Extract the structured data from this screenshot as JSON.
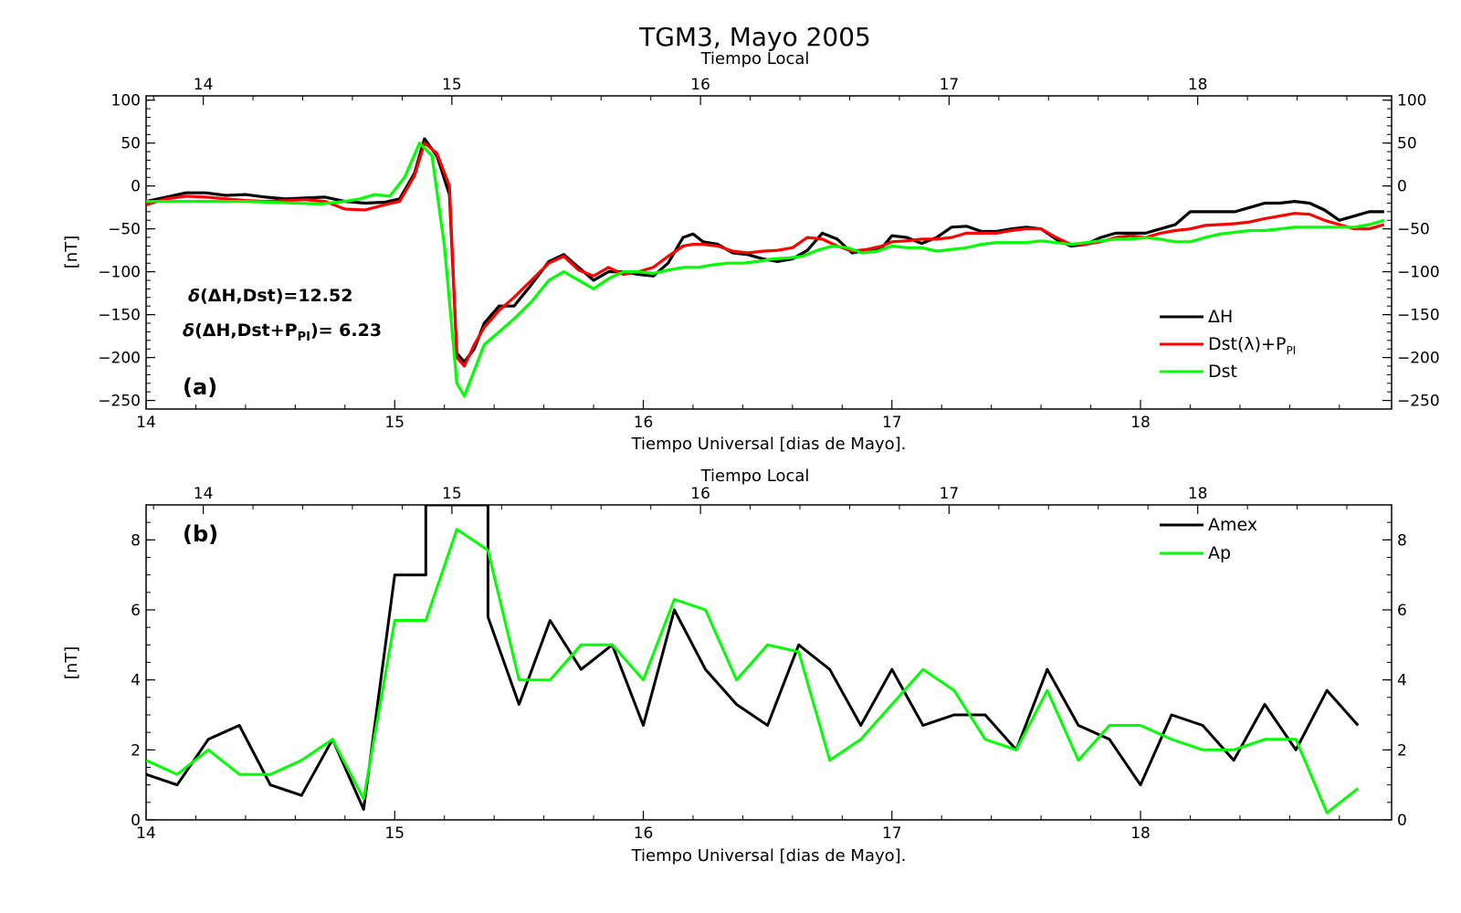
{
  "page": {
    "title": "TGM3, Mayo 2005",
    "top_axis_label": "Tiempo Local",
    "bottom_axis_label": "Tiempo Universal [dias de Mayo]."
  },
  "panel_a": {
    "label": "(a)",
    "ylabel": "[nT]",
    "annotation_1": {
      "prefix": "δ",
      "text": "(ΔH,Dst)=12.52"
    },
    "annotation_2": {
      "prefix": "δ",
      "pre": "(ΔH,Dst+P",
      "sub": "PI",
      "post": ")=  6.23"
    },
    "legend": [
      {
        "text": "ΔH",
        "color": "#000000"
      },
      {
        "text": "Dst(λ)+P",
        "sub": "PI",
        "color": "#ff0000"
      },
      {
        "text": "Dst",
        "color": "#00ff00"
      }
    ]
  },
  "panel_b": {
    "label": "(b)",
    "ylabel": "[nT]",
    "legend": [
      {
        "text": "Amex",
        "color": "#000000"
      },
      {
        "text": "Ap",
        "color": "#00ff00"
      }
    ]
  },
  "chart_data": [
    {
      "type": "line",
      "title": "TGM3, Mayo 2005",
      "xlabel": "Tiempo Universal [dias de Mayo].",
      "x2label": "Tiempo Local",
      "ylabel": "[nT]",
      "xlim": [
        14,
        19.01
      ],
      "ylim": [
        -260,
        105
      ],
      "xticks": [
        14,
        15,
        16,
        17,
        18
      ],
      "x2ticks": [
        14,
        15,
        16,
        17,
        18
      ],
      "x2lim": [
        13.77,
        18.78
      ],
      "yticks": [
        100,
        50,
        0,
        -50,
        -100,
        -150,
        -200,
        -250
      ],
      "series": [
        {
          "name": "ΔH",
          "color": "#000000",
          "width": 3.2,
          "x": [
            14.0,
            14.08,
            14.16,
            14.24,
            14.32,
            14.4,
            14.48,
            14.56,
            14.64,
            14.72,
            14.8,
            14.88,
            14.96,
            15.02,
            15.08,
            15.12,
            15.17,
            15.22,
            15.25,
            15.28,
            15.32,
            15.36,
            15.42,
            15.48,
            15.55,
            15.62,
            15.68,
            15.74,
            15.8,
            15.86,
            15.92,
            15.98,
            16.04,
            16.1,
            16.16,
            16.2,
            16.24,
            16.3,
            16.36,
            16.42,
            16.48,
            16.54,
            16.6,
            16.66,
            16.72,
            16.78,
            16.84,
            16.9,
            16.96,
            17.0,
            17.06,
            17.12,
            17.18,
            17.24,
            17.3,
            17.36,
            17.42,
            17.48,
            17.54,
            17.6,
            17.66,
            17.72,
            17.78,
            17.84,
            17.9,
            17.96,
            18.02,
            18.08,
            18.14,
            18.2,
            18.26,
            18.32,
            18.38,
            18.44,
            18.5,
            18.56,
            18.62,
            18.68,
            18.74,
            18.8,
            18.86,
            18.92,
            18.98
          ],
          "y": [
            -18,
            -13,
            -8,
            -8,
            -11,
            -10,
            -13,
            -15,
            -14,
            -13,
            -18,
            -20,
            -19,
            -15,
            15,
            55,
            35,
            -10,
            -195,
            -205,
            -190,
            -160,
            -140,
            -140,
            -115,
            -88,
            -80,
            -95,
            -110,
            -100,
            -100,
            -103,
            -105,
            -90,
            -60,
            -56,
            -65,
            -68,
            -78,
            -80,
            -85,
            -88,
            -85,
            -75,
            -55,
            -62,
            -78,
            -75,
            -72,
            -58,
            -60,
            -67,
            -60,
            -48,
            -47,
            -53,
            -53,
            -50,
            -48,
            -50,
            -62,
            -70,
            -68,
            -60,
            -55,
            -55,
            -55,
            -50,
            -45,
            -30,
            -30,
            -30,
            -30,
            -25,
            -20,
            -20,
            -18,
            -20,
            -28,
            -40,
            -35,
            -30,
            -30
          ]
        },
        {
          "name": "Dst(λ)+PPI",
          "color": "#ff0000",
          "width": 3.2,
          "x": [
            14.0,
            14.08,
            14.16,
            14.24,
            14.32,
            14.4,
            14.48,
            14.56,
            14.64,
            14.72,
            14.8,
            14.88,
            14.96,
            15.02,
            15.08,
            15.12,
            15.17,
            15.22,
            15.25,
            15.28,
            15.32,
            15.36,
            15.42,
            15.48,
            15.55,
            15.62,
            15.68,
            15.74,
            15.8,
            15.86,
            15.92,
            15.98,
            16.04,
            16.1,
            16.16,
            16.2,
            16.24,
            16.3,
            16.36,
            16.42,
            16.48,
            16.54,
            16.6,
            16.66,
            16.72,
            16.78,
            16.84,
            16.9,
            16.96,
            17.0,
            17.06,
            17.12,
            17.18,
            17.24,
            17.3,
            17.36,
            17.42,
            17.48,
            17.54,
            17.6,
            17.66,
            17.72,
            17.78,
            17.84,
            17.9,
            17.96,
            18.02,
            18.08,
            18.14,
            18.2,
            18.26,
            18.32,
            18.38,
            18.44,
            18.5,
            18.56,
            18.62,
            18.68,
            18.74,
            18.8,
            18.86,
            18.92,
            18.98
          ],
          "y": [
            -22,
            -15,
            -12,
            -13,
            -15,
            -17,
            -18,
            -17,
            -16,
            -18,
            -27,
            -28,
            -22,
            -18,
            12,
            50,
            38,
            0,
            -200,
            -210,
            -185,
            -165,
            -145,
            -130,
            -110,
            -90,
            -82,
            -98,
            -105,
            -95,
            -103,
            -100,
            -95,
            -82,
            -70,
            -68,
            -68,
            -70,
            -76,
            -78,
            -76,
            -75,
            -72,
            -60,
            -62,
            -70,
            -76,
            -74,
            -70,
            -65,
            -64,
            -62,
            -62,
            -60,
            -55,
            -55,
            -55,
            -52,
            -50,
            -50,
            -60,
            -68,
            -68,
            -65,
            -60,
            -58,
            -60,
            -55,
            -52,
            -50,
            -46,
            -45,
            -44,
            -42,
            -38,
            -35,
            -32,
            -33,
            -40,
            -45,
            -50,
            -50,
            -45
          ]
        },
        {
          "name": "Dst",
          "color": "#00ff00",
          "width": 3.2,
          "x": [
            14.0,
            14.1,
            14.2,
            14.3,
            14.4,
            14.5,
            14.6,
            14.7,
            14.8,
            14.86,
            14.92,
            14.98,
            15.04,
            15.1,
            15.15,
            15.2,
            15.25,
            15.28,
            15.32,
            15.36,
            15.42,
            15.48,
            15.55,
            15.62,
            15.68,
            15.74,
            15.8,
            15.86,
            15.92,
            15.98,
            16.04,
            16.1,
            16.16,
            16.22,
            16.28,
            16.34,
            16.4,
            16.46,
            16.52,
            16.58,
            16.64,
            16.7,
            16.76,
            16.82,
            16.88,
            16.94,
            17.0,
            17.06,
            17.12,
            17.18,
            17.24,
            17.3,
            17.36,
            17.42,
            17.48,
            17.54,
            17.6,
            17.66,
            17.72,
            17.78,
            17.84,
            17.9,
            17.96,
            18.02,
            18.08,
            18.14,
            18.2,
            18.26,
            18.32,
            18.38,
            18.44,
            18.5,
            18.56,
            18.62,
            18.68,
            18.74,
            18.8,
            18.86,
            18.92,
            18.98
          ],
          "y": [
            -18,
            -18,
            -18,
            -18,
            -18,
            -19,
            -20,
            -21,
            -18,
            -15,
            -10,
            -12,
            10,
            50,
            35,
            -70,
            -230,
            -245,
            -215,
            -185,
            -170,
            -155,
            -135,
            -110,
            -100,
            -110,
            -120,
            -108,
            -100,
            -100,
            -102,
            -98,
            -95,
            -95,
            -92,
            -90,
            -90,
            -88,
            -85,
            -84,
            -82,
            -75,
            -70,
            -72,
            -78,
            -76,
            -70,
            -72,
            -72,
            -76,
            -74,
            -72,
            -68,
            -66,
            -66,
            -66,
            -64,
            -66,
            -68,
            -66,
            -64,
            -62,
            -62,
            -60,
            -62,
            -65,
            -65,
            -60,
            -56,
            -54,
            -52,
            -52,
            -50,
            -48,
            -48,
            -48,
            -48,
            -48,
            -45,
            -40
          ]
        }
      ]
    },
    {
      "type": "line",
      "xlabel": "Tiempo Universal [dias de Mayo].",
      "x2label": "Tiempo Local",
      "ylabel": "[nT]",
      "xlim": [
        14,
        19.01
      ],
      "ylim": [
        0,
        9
      ],
      "xticks": [
        14,
        15,
        16,
        17,
        18
      ],
      "x2ticks": [
        14,
        15,
        16,
        17,
        18
      ],
      "x2lim": [
        13.77,
        18.78
      ],
      "yticks": [
        0,
        2,
        4,
        6,
        8
      ],
      "series": [
        {
          "name": "Amex",
          "color": "#000000",
          "width": 3,
          "x": [
            14.0,
            14.125,
            14.25,
            14.375,
            14.5,
            14.625,
            14.75,
            14.875,
            15.0,
            15.125,
            15.125,
            15.375,
            15.375,
            15.5,
            15.625,
            15.75,
            15.875,
            16.0,
            16.125,
            16.25,
            16.375,
            16.5,
            16.625,
            16.75,
            16.875,
            17.0,
            17.125,
            17.25,
            17.375,
            17.5,
            17.625,
            17.75,
            17.875,
            18.0,
            18.125,
            18.25,
            18.375,
            18.5,
            18.625,
            18.75,
            18.875
          ],
          "y": [
            1.3,
            1.0,
            2.3,
            2.7,
            1.0,
            0.7,
            2.3,
            0.3,
            7.0,
            7.0,
            9.0,
            9.0,
            5.8,
            3.3,
            5.7,
            4.3,
            5.0,
            2.7,
            6.0,
            4.3,
            3.3,
            2.7,
            5.0,
            4.3,
            2.7,
            4.3,
            2.7,
            3.0,
            3.0,
            2.0,
            4.3,
            2.7,
            2.3,
            1.0,
            3.0,
            2.7,
            1.7,
            3.3,
            2.0,
            3.7,
            2.7
          ]
        },
        {
          "name": "Ap",
          "color": "#00ff00",
          "width": 3,
          "x": [
            14.0,
            14.125,
            14.25,
            14.375,
            14.5,
            14.625,
            14.75,
            14.875,
            15.0,
            15.125,
            15.25,
            15.375,
            15.5,
            15.625,
            15.75,
            15.875,
            16.0,
            16.125,
            16.25,
            16.375,
            16.5,
            16.625,
            16.75,
            16.875,
            17.0,
            17.125,
            17.25,
            17.375,
            17.5,
            17.625,
            17.75,
            17.875,
            18.0,
            18.125,
            18.25,
            18.375,
            18.5,
            18.625,
            18.75,
            18.875
          ],
          "y": [
            1.7,
            1.3,
            2.0,
            1.3,
            1.3,
            1.7,
            2.3,
            0.6,
            5.7,
            5.7,
            8.3,
            7.7,
            4.0,
            4.0,
            5.0,
            5.0,
            4.0,
            6.3,
            6.0,
            4.0,
            5.0,
            4.8,
            1.7,
            2.3,
            3.3,
            4.3,
            3.7,
            2.3,
            2.0,
            3.7,
            1.7,
            2.7,
            2.7,
            2.3,
            2.0,
            2.0,
            2.3,
            2.3,
            0.2,
            0.9
          ]
        }
      ]
    }
  ]
}
